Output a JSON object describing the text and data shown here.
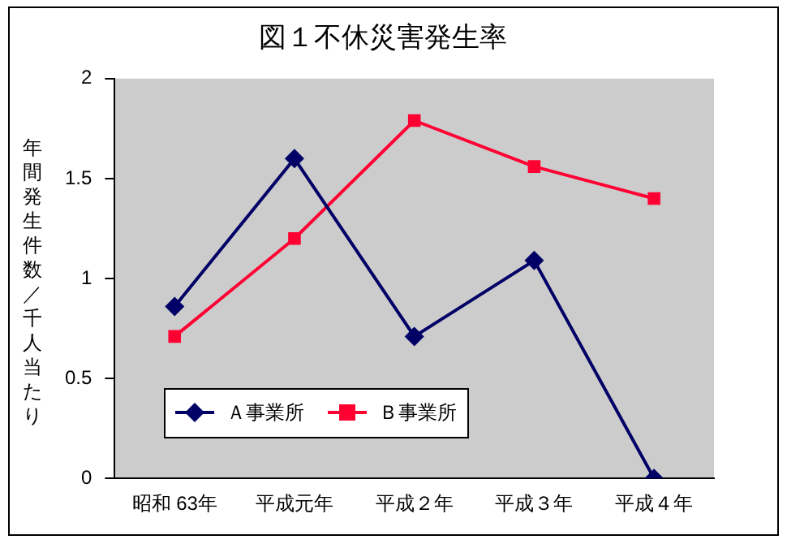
{
  "chart_data": {
    "type": "line",
    "title": "図１不休災害発生率",
    "ylabel": "年間発生件数／千人当たり",
    "categories": [
      "昭和 63年",
      "平成元年",
      "平成２年",
      "平成３年",
      "平成４年"
    ],
    "series": [
      {
        "name": "Ａ事業所",
        "color": "#000066",
        "marker": "diamond",
        "values": [
          0.86,
          1.6,
          0.71,
          1.09,
          0
        ]
      },
      {
        "name": "Ｂ事業所",
        "color": "#ff0033",
        "marker": "square",
        "values": [
          0.71,
          1.2,
          1.79,
          1.56,
          1.4
        ]
      }
    ],
    "ylim": [
      0,
      2
    ],
    "yticks": [
      0,
      0.5,
      1,
      1.5,
      2
    ],
    "grid": false,
    "legend": "bottom left"
  }
}
